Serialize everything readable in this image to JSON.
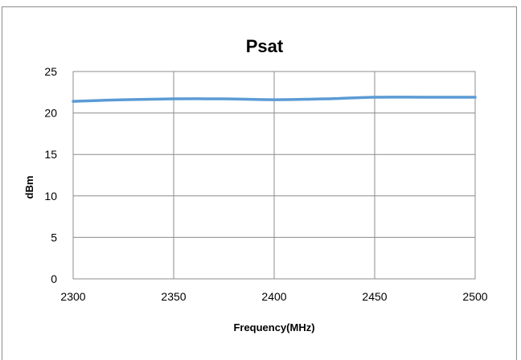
{
  "chart_data": {
    "type": "line",
    "title": "Psat",
    "xlabel": "Frequency(MHz)",
    "ylabel": "dBm",
    "x": [
      2300,
      2325,
      2350,
      2375,
      2400,
      2425,
      2450,
      2475,
      2500
    ],
    "series": [
      {
        "values": [
          21.4,
          21.6,
          21.7,
          21.7,
          21.6,
          21.7,
          21.9,
          21.9,
          21.9
        ],
        "color": "#5b9bd5"
      }
    ],
    "xlim": [
      2300,
      2500
    ],
    "ylim": [
      0,
      25
    ],
    "x_ticks": [
      2300,
      2350,
      2400,
      2450,
      2500
    ],
    "y_ticks": [
      0,
      5,
      10,
      15,
      20,
      25
    ],
    "grid": true,
    "legend": "none"
  }
}
